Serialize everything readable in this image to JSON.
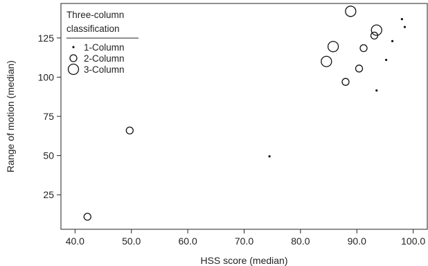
{
  "chart_data": {
    "type": "scatter",
    "xlabel": "HSS score (median)",
    "ylabel": "Range of motion (median)",
    "xlim": [
      37.5,
      102.5
    ],
    "ylim": [
      3,
      147
    ],
    "x_ticks": [
      40,
      50,
      60,
      70,
      80,
      90,
      100
    ],
    "x_tick_labels": [
      "40.0",
      "50.0",
      "60.0",
      "70.0",
      "80.0",
      "90.0",
      "100.0"
    ],
    "y_ticks": [
      25,
      50,
      75,
      100,
      125
    ],
    "y_tick_labels": [
      "25",
      "50",
      "75",
      "100",
      "125"
    ],
    "grid": false,
    "legend": {
      "title_lines": [
        "Three-column",
        "classification"
      ],
      "placement": "top-left",
      "entries": [
        {
          "label": "1-Column",
          "size": 1
        },
        {
          "label": "2-Column",
          "size": 2
        },
        {
          "label": "3-Column",
          "size": 3
        }
      ]
    },
    "series": [
      {
        "name": "1-Column",
        "points": [
          {
            "x": 74.5,
            "y": 49.5
          },
          {
            "x": 93.5,
            "y": 91.5
          },
          {
            "x": 95.2,
            "y": 111
          },
          {
            "x": 96.3,
            "y": 123
          },
          {
            "x": 98.0,
            "y": 137
          },
          {
            "x": 98.5,
            "y": 132
          }
        ]
      },
      {
        "name": "2-Column",
        "points": [
          {
            "x": 42.2,
            "y": 11
          },
          {
            "x": 49.7,
            "y": 66
          },
          {
            "x": 88.0,
            "y": 97
          },
          {
            "x": 90.4,
            "y": 105.5
          },
          {
            "x": 91.2,
            "y": 118.5
          },
          {
            "x": 93.1,
            "y": 126.5
          }
        ]
      },
      {
        "name": "3-Column",
        "points": [
          {
            "x": 84.6,
            "y": 110
          },
          {
            "x": 85.8,
            "y": 119.5
          },
          {
            "x": 88.9,
            "y": 142
          },
          {
            "x": 93.5,
            "y": 130
          }
        ]
      }
    ]
  }
}
